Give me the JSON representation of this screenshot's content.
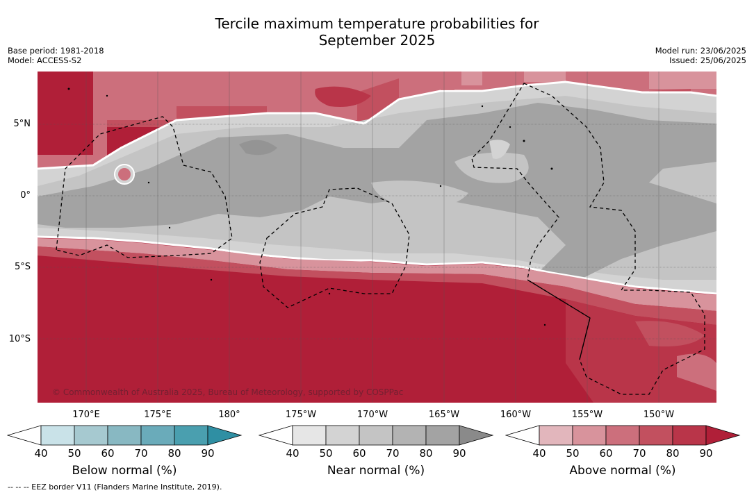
{
  "title": {
    "line1": "Tercile maximum temperature probabilities for",
    "line2": "September 2025"
  },
  "meta": {
    "base_period": "Base period: 1981-2018",
    "model": "Model: ACCESS-S2",
    "model_run": "Model run: 23/06/2025",
    "issued": "Issued: 25/06/2025"
  },
  "map": {
    "lat_labels": [
      "5°N",
      "0°",
      "5°S",
      "10°S"
    ],
    "lon_labels": [
      "170°E",
      "175°E",
      "180°",
      "175°W",
      "170°W",
      "165°W",
      "160°W",
      "155°W",
      "150°W"
    ],
    "copyright": "© Commonwealth of Australia 2025, Bureau of Meteorology, supported by COSPPac"
  },
  "colorbars": [
    {
      "label": "Below normal (%)",
      "ticks": [
        "40",
        "50",
        "60",
        "70",
        "80",
        "90"
      ],
      "colors": [
        "#ffffff",
        "#c9e2e8",
        "#a6c9d0",
        "#88b8c2",
        "#6aabba",
        "#4a9faf",
        "#2f8fa3"
      ]
    },
    {
      "label": "Near normal (%)",
      "ticks": [
        "40",
        "50",
        "60",
        "70",
        "80",
        "90"
      ],
      "colors": [
        "#ffffff",
        "#e6e6e6",
        "#d3d3d3",
        "#c4c4c4",
        "#b3b3b3",
        "#a3a3a3",
        "#8a8a8a"
      ]
    },
    {
      "label": "Above normal (%)",
      "ticks": [
        "40",
        "50",
        "60",
        "70",
        "80",
        "90"
      ],
      "colors": [
        "#ffffff",
        "#e2b6bc",
        "#d8939c",
        "#cc6f7c",
        "#c2505f",
        "#b93549",
        "#b01f38"
      ]
    }
  ],
  "footer": "--  --  -- EEZ border V11 (Flanders Marine Institute, 2019)."
}
